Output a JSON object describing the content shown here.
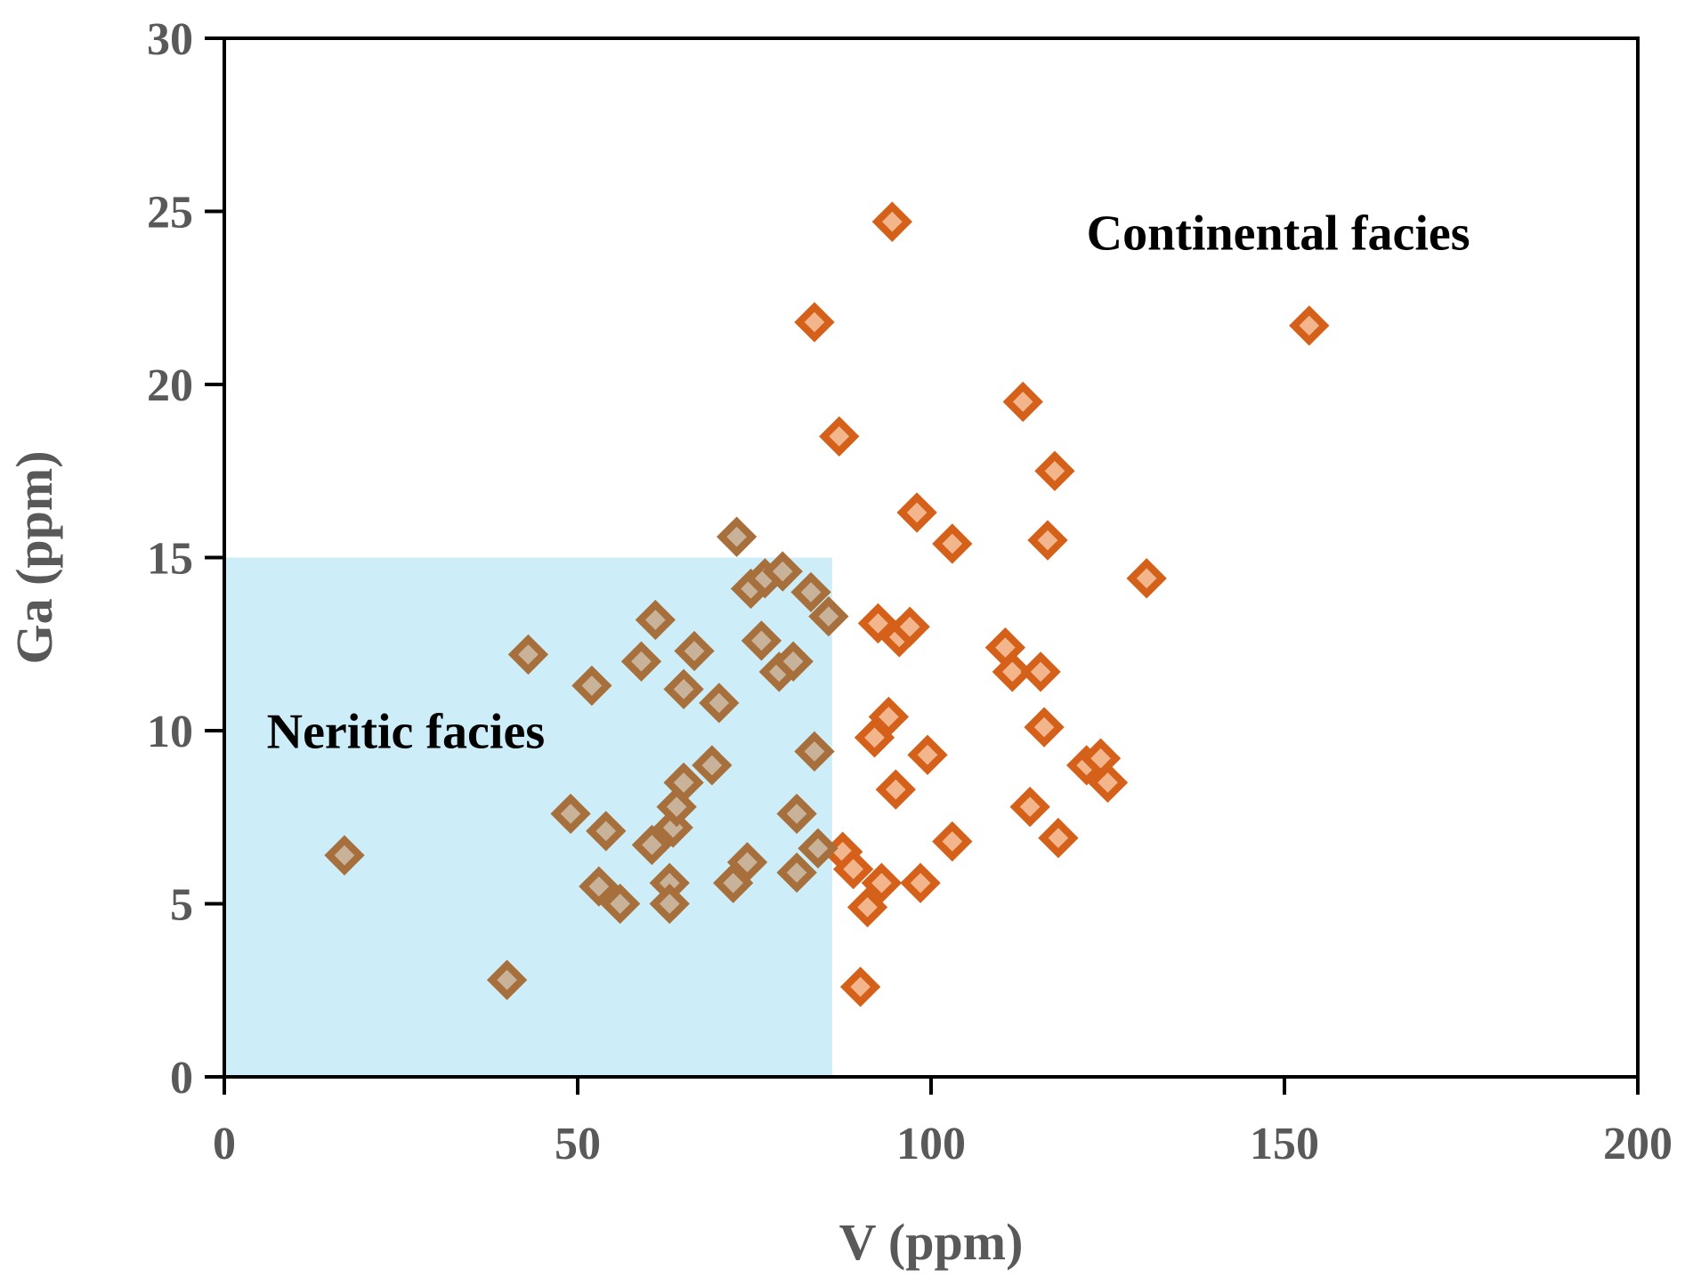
{
  "chart_data": {
    "type": "scatter",
    "title": "",
    "xlabel": "V (ppm)",
    "ylabel": "Ga (ppm)",
    "xlim": [
      0,
      200
    ],
    "ylim": [
      0,
      30
    ],
    "xticks": [
      0,
      50,
      100,
      150,
      200
    ],
    "yticks": [
      0,
      5,
      10,
      15,
      20,
      25,
      30
    ],
    "grid": false,
    "region": {
      "label": "Neritic facies",
      "x_range": [
        0,
        86
      ],
      "y_range": [
        0,
        15
      ],
      "color": "#cdeef8"
    },
    "annotations": [
      {
        "text": "Neritic facies",
        "x": 6,
        "y": 9.5
      },
      {
        "text": "Continental facies",
        "x": 122,
        "y": 23.9
      }
    ],
    "colors": {
      "neritic_stroke": "#a66f3c",
      "neritic_fill": "#c8b29a",
      "continental_stroke": "#d4601a",
      "continental_fill": "#f3b58c"
    },
    "series": [
      {
        "name": "Neritic facies samples",
        "points": [
          [
            17,
            6.4
          ],
          [
            40,
            2.8
          ],
          [
            43,
            12.2
          ],
          [
            49,
            7.6
          ],
          [
            52,
            11.3
          ],
          [
            53,
            5.5
          ],
          [
            54,
            7.1
          ],
          [
            56,
            5.0
          ],
          [
            59,
            12.0
          ],
          [
            60.5,
            6.7
          ],
          [
            61,
            13.2
          ],
          [
            63,
            5.6
          ],
          [
            63,
            5.0
          ],
          [
            63.5,
            7.2
          ],
          [
            64,
            7.8
          ],
          [
            65,
            8.5
          ],
          [
            65,
            11.2
          ],
          [
            66.5,
            12.3
          ],
          [
            69,
            9.0
          ],
          [
            70,
            10.8
          ],
          [
            72,
            5.6
          ],
          [
            72.5,
            15.6
          ],
          [
            74,
            6.2
          ],
          [
            74.5,
            14.1
          ],
          [
            76,
            12.6
          ],
          [
            76.5,
            14.4
          ],
          [
            78.5,
            11.7
          ],
          [
            79,
            14.6
          ],
          [
            80.5,
            12.0
          ],
          [
            81,
            7.6
          ],
          [
            81,
            5.9
          ],
          [
            83,
            14.0
          ],
          [
            83.5,
            9.4
          ],
          [
            84,
            6.6
          ],
          [
            85.5,
            13.3
          ]
        ]
      },
      {
        "name": "Continental facies samples",
        "points": [
          [
            83.5,
            21.8
          ],
          [
            87,
            18.5
          ],
          [
            87.5,
            6.5
          ],
          [
            89,
            6.0
          ],
          [
            90,
            2.6
          ],
          [
            91,
            4.9
          ],
          [
            92,
            9.8
          ],
          [
            92.5,
            13.1
          ],
          [
            93,
            5.6
          ],
          [
            94,
            10.4
          ],
          [
            94.5,
            24.7
          ],
          [
            95,
            8.3
          ],
          [
            95.5,
            12.7
          ],
          [
            97,
            13.0
          ],
          [
            98,
            16.3
          ],
          [
            98.5,
            5.6
          ],
          [
            99.5,
            9.3
          ],
          [
            103,
            15.4
          ],
          [
            103,
            6.8
          ],
          [
            110.5,
            12.4
          ],
          [
            111.5,
            11.7
          ],
          [
            113,
            19.5
          ],
          [
            114,
            7.8
          ],
          [
            115.5,
            11.7
          ],
          [
            116,
            10.1
          ],
          [
            116.5,
            15.5
          ],
          [
            117.5,
            17.5
          ],
          [
            118,
            6.9
          ],
          [
            122,
            9.0
          ],
          [
            124,
            9.2
          ],
          [
            125,
            8.5
          ],
          [
            130.5,
            14.4
          ],
          [
            153.5,
            21.7
          ]
        ]
      }
    ]
  }
}
